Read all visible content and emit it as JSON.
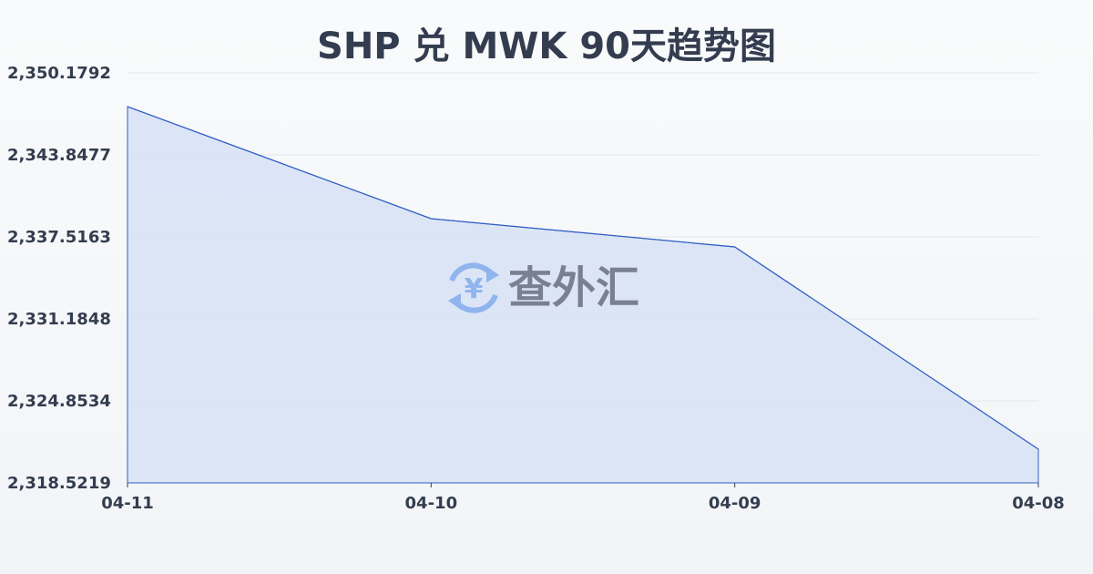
{
  "chart_data": {
    "type": "area",
    "title": "SHP 兑 MWK 90天趋势图",
    "categories": [
      "04-11",
      "04-10",
      "04-09",
      "04-08"
    ],
    "values": [
      2347.576,
      2338.924,
      2336.743,
      2321.125
    ],
    "yticks": [
      "2,350.1792",
      "2,343.8477",
      "2,337.5163",
      "2,331.1848",
      "2,324.8534",
      "2,318.5219"
    ],
    "ylim": [
      2318.5219,
      2350.1792
    ],
    "grid": true,
    "line_color": "#2f5fc4",
    "fill_color": "#d7e2f6"
  },
  "watermark": {
    "text": "查外汇",
    "icon": "yen-exchange-icon"
  }
}
